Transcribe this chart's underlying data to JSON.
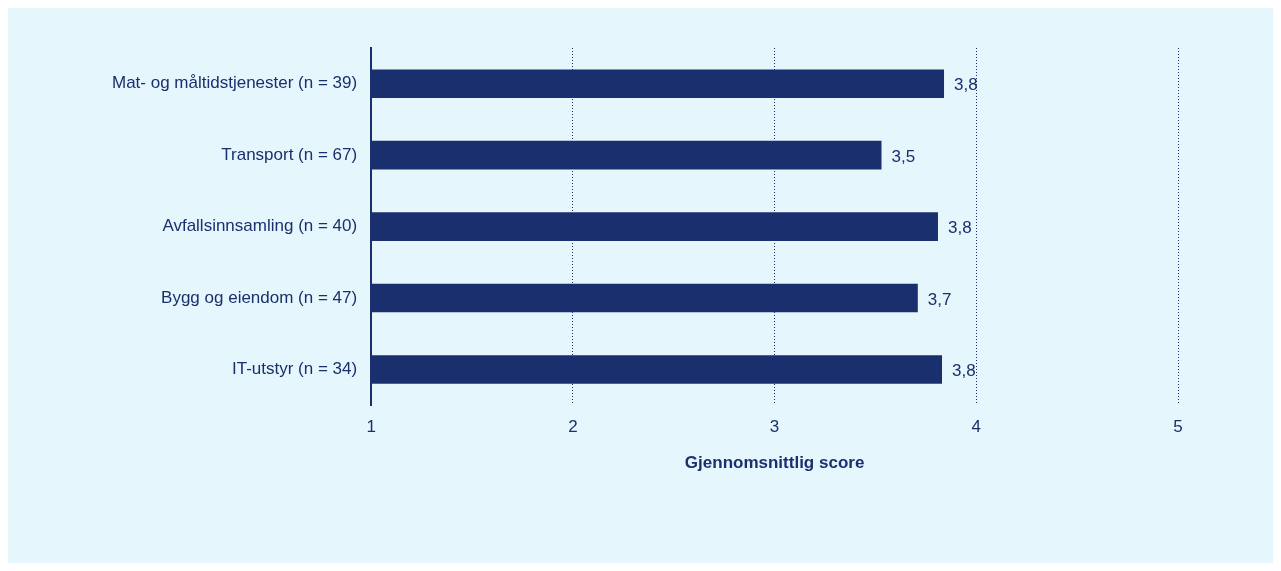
{
  "chart_data": {
    "type": "bar",
    "orientation": "horizontal",
    "categories": [
      "Mat- og måltidstjenester (n = 39)",
      "Transport (n = 67)",
      "Avfallsinnsamling (n = 40)",
      "Bygg og eiendom (n = 47)",
      "IT-utstyr (n = 34)"
    ],
    "values": [
      3.84,
      3.53,
      3.81,
      3.71,
      3.83
    ],
    "value_labels": [
      "3,8",
      "3,5",
      "3,8",
      "3,7",
      "3,8"
    ],
    "color": "#1a306e",
    "xlabel": "Gjennomsnittlig score",
    "xlim": [
      1,
      5
    ],
    "xticks": [
      1,
      2,
      3,
      4,
      5
    ],
    "grid": "x",
    "legend": false
  }
}
